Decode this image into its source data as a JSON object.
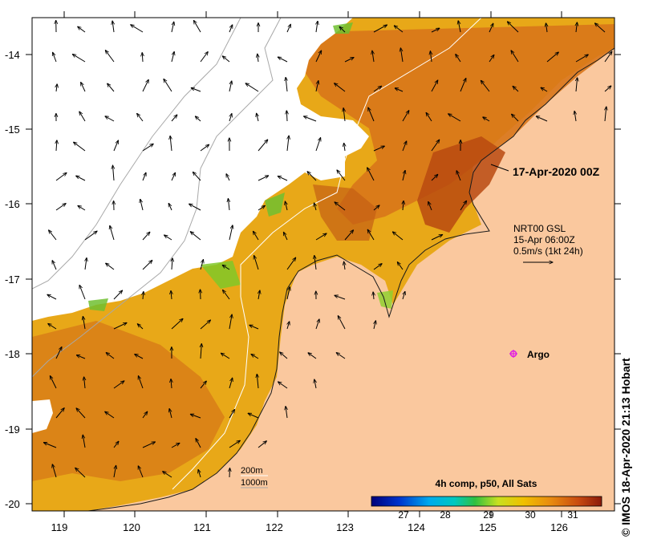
{
  "map": {
    "date_label": "17-Apr-2020 00Z",
    "currents": {
      "product": "NRT00 GSL",
      "time": "15-Apr 06:00Z",
      "scale": "0.5m/s (1kt 24h)"
    },
    "argo_label": "Argo",
    "isobaths": [
      "200m",
      "1000m"
    ],
    "colorbar": {
      "title": "4h comp, p50, All Sats",
      "ticks": [
        "27",
        "28",
        "29",
        "30",
        "31"
      ]
    },
    "lon_ticks": [
      "119",
      "120",
      "121",
      "122",
      "123",
      "124",
      "125",
      "126"
    ],
    "lat_ticks": [
      "-14",
      "-15",
      "-16",
      "-17",
      "-18",
      "-19",
      "-20"
    ],
    "copyright": "© IMOS 18-Apr-2020 21:13 Hobart",
    "colors": {
      "land": "#fac89e",
      "cloud": "#ffffff",
      "sst_cool": "#e8a818",
      "sst_warm": "#d06a10",
      "sst_hot": "#a23a0c"
    }
  }
}
